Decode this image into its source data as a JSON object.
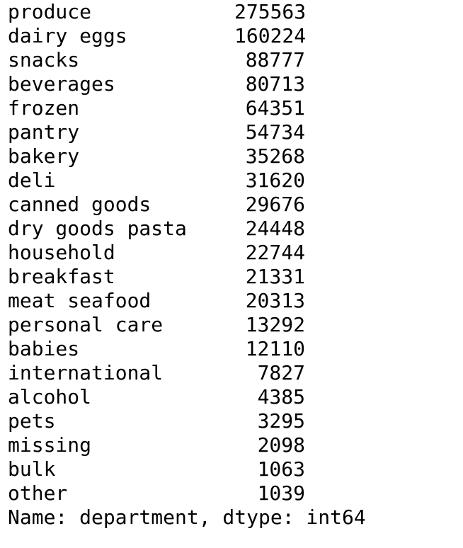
{
  "series": {
    "rows": [
      {
        "label": "produce",
        "value": "275563"
      },
      {
        "label": "dairy eggs",
        "value": "160224"
      },
      {
        "label": "snacks",
        "value": "88777"
      },
      {
        "label": "beverages",
        "value": "80713"
      },
      {
        "label": "frozen",
        "value": "64351"
      },
      {
        "label": "pantry",
        "value": "54734"
      },
      {
        "label": "bakery",
        "value": "35268"
      },
      {
        "label": "deli",
        "value": "31620"
      },
      {
        "label": "canned goods",
        "value": "29676"
      },
      {
        "label": "dry goods pasta",
        "value": "24448"
      },
      {
        "label": "household",
        "value": "22744"
      },
      {
        "label": "breakfast",
        "value": "21331"
      },
      {
        "label": "meat seafood",
        "value": "20313"
      },
      {
        "label": "personal care",
        "value": "13292"
      },
      {
        "label": "babies",
        "value": "12110"
      },
      {
        "label": "international",
        "value": "7827"
      },
      {
        "label": "alcohol",
        "value": "4385"
      },
      {
        "label": "pets",
        "value": "3295"
      },
      {
        "label": "missing",
        "value": "2098"
      },
      {
        "label": "bulk",
        "value": "1063"
      },
      {
        "label": "other",
        "value": "1039"
      }
    ],
    "footer": "Name: department, dtype: int64"
  }
}
